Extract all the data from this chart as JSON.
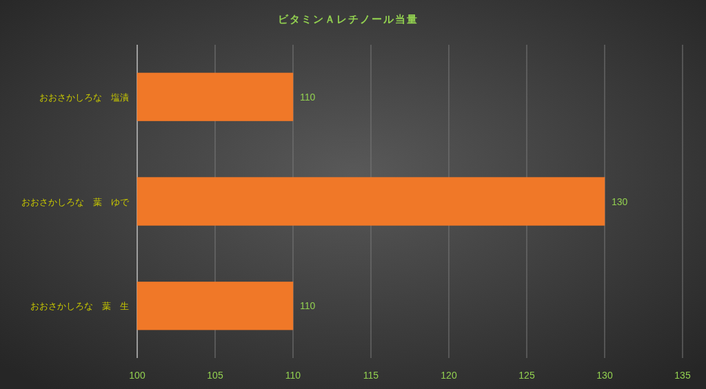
{
  "chart_data": {
    "type": "bar",
    "orientation": "horizontal",
    "title": "ビタミンＡレチノール当量",
    "categories": [
      "おおさかしろな　塩漬",
      "おおさかしろな　葉　ゆで",
      "おおさかしろな　葉　生"
    ],
    "values": [
      110,
      130,
      110
    ],
    "color": "#f07828",
    "xlim": [
      100,
      135
    ],
    "xticks": [
      100,
      105,
      110,
      115,
      120,
      125,
      130,
      135
    ],
    "grid": "x",
    "data_labels": true
  }
}
